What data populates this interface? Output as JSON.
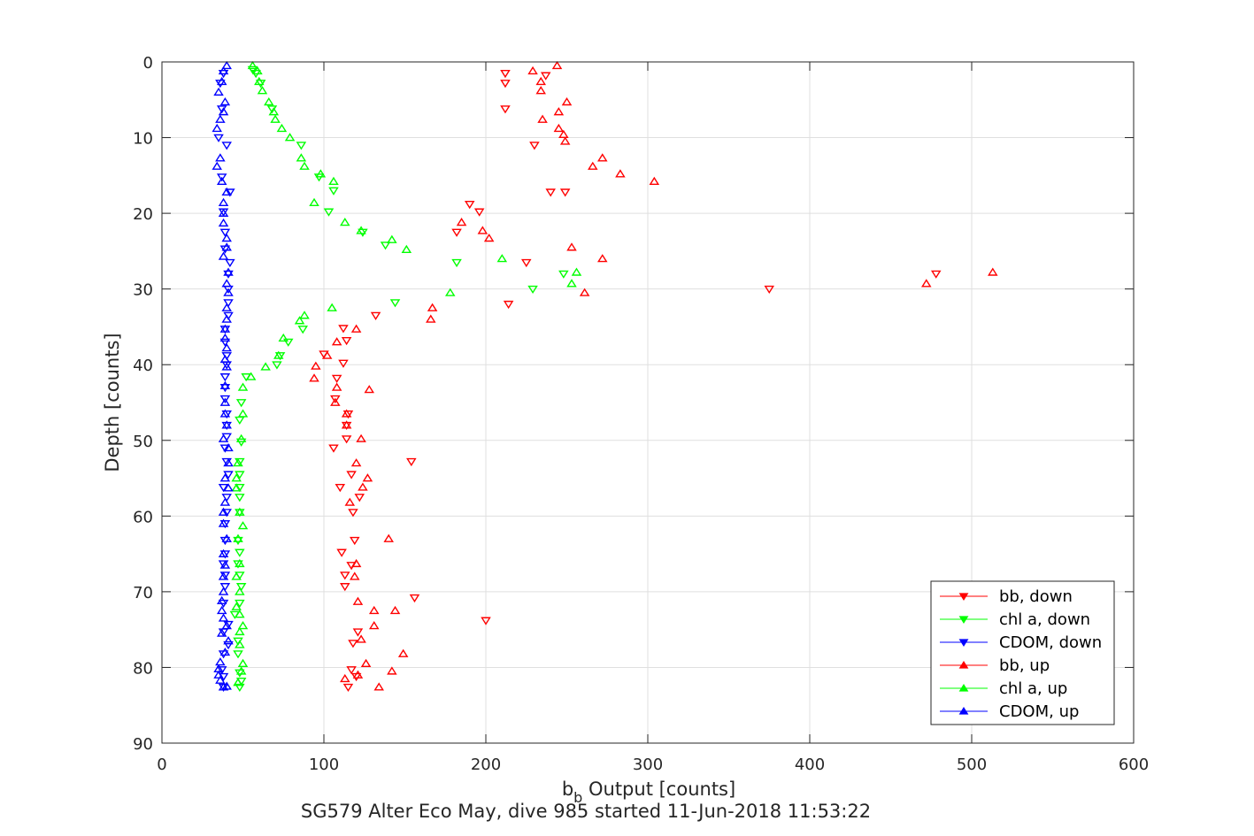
{
  "chart_data": {
    "type": "scatter",
    "title": "",
    "xlabel": {
      "main": "b",
      "subscript": "b",
      "rest": " Output [counts]"
    },
    "ylabel": "Depth [counts]",
    "caption": "SG579 Alter Eco May, dive 985 started 11-Jun-2018 11:53:22",
    "xlim": [
      0,
      600
    ],
    "ylim": [
      0,
      90
    ],
    "y_reversed": true,
    "grid": true,
    "x_ticks": [
      0,
      100,
      200,
      300,
      400,
      500,
      600
    ],
    "y_ticks": [
      0,
      10,
      20,
      30,
      40,
      50,
      60,
      70,
      80,
      90
    ],
    "legend_position": "bottom-right",
    "series": [
      {
        "name": "bb, down",
        "color": "#ff0000",
        "marker": "triangle-down",
        "points": [
          [
            212,
            1.5
          ],
          [
            212,
            2.8
          ],
          [
            212,
            6.2
          ],
          [
            230,
            11
          ],
          [
            237,
            1.8
          ],
          [
            240,
            17.2
          ],
          [
            249,
            17.2
          ],
          [
            196,
            19.8
          ],
          [
            190,
            18.8
          ],
          [
            182,
            22.5
          ],
          [
            225,
            26.5
          ],
          [
            214,
            32
          ],
          [
            375,
            30
          ],
          [
            478,
            28
          ],
          [
            132,
            33.5
          ],
          [
            112,
            35.2
          ],
          [
            114,
            36.8
          ],
          [
            100,
            38.6
          ],
          [
            112,
            39.8
          ],
          [
            108,
            41.8
          ],
          [
            107,
            44.5
          ],
          [
            115,
            46.5
          ],
          [
            114,
            48
          ],
          [
            114,
            49.8
          ],
          [
            106,
            51
          ],
          [
            154,
            52.8
          ],
          [
            117,
            54.5
          ],
          [
            110,
            56.2
          ],
          [
            122,
            57.5
          ],
          [
            118,
            59.5
          ],
          [
            119,
            63.2
          ],
          [
            111,
            64.8
          ],
          [
            117,
            66.5
          ],
          [
            113,
            67.8
          ],
          [
            113,
            69.3
          ],
          [
            156,
            70.8
          ],
          [
            200,
            73.8
          ],
          [
            121,
            75.3
          ],
          [
            118,
            76.8
          ],
          [
            117,
            80.3
          ],
          [
            120,
            81.2
          ],
          [
            115,
            82.6
          ]
        ]
      },
      {
        "name": "chl a, down",
        "color": "#00ff00",
        "marker": "triangle-down",
        "points": [
          [
            56,
            1
          ],
          [
            58,
            1.5
          ],
          [
            61,
            2.8
          ],
          [
            68,
            6.2
          ],
          [
            86,
            11
          ],
          [
            97,
            15.2
          ],
          [
            106,
            17
          ],
          [
            103,
            19.8
          ],
          [
            124,
            22.5
          ],
          [
            138,
            24.2
          ],
          [
            182,
            26.5
          ],
          [
            248,
            28
          ],
          [
            229,
            30
          ],
          [
            144,
            31.8
          ],
          [
            87,
            35.3
          ],
          [
            78,
            37
          ],
          [
            73,
            38.8
          ],
          [
            71,
            40
          ],
          [
            52,
            41.6
          ],
          [
            49,
            45
          ],
          [
            48,
            47.3
          ],
          [
            49,
            50.2
          ],
          [
            48,
            52.8
          ],
          [
            48,
            54.5
          ],
          [
            48,
            56.2
          ],
          [
            48,
            57.5
          ],
          [
            48,
            59.5
          ],
          [
            47,
            63.2
          ],
          [
            48,
            64.8
          ],
          [
            47,
            66.3
          ],
          [
            48,
            67.8
          ],
          [
            49,
            69.3
          ],
          [
            48,
            71.5
          ],
          [
            45,
            73
          ],
          [
            47,
            76.5
          ],
          [
            47,
            78.2
          ],
          [
            48,
            80.7
          ],
          [
            49,
            81.8
          ],
          [
            48,
            82.6
          ]
        ]
      },
      {
        "name": "CDOM, down",
        "color": "#0000ff",
        "marker": "triangle-down",
        "points": [
          [
            38,
            1.5
          ],
          [
            36,
            2.8
          ],
          [
            37,
            6.2
          ],
          [
            40,
            11
          ],
          [
            35,
            10
          ],
          [
            37,
            15.2
          ],
          [
            42,
            17.2
          ],
          [
            38,
            19.8
          ],
          [
            39,
            22.5
          ],
          [
            39,
            24.7
          ],
          [
            42,
            26.5
          ],
          [
            41,
            28
          ],
          [
            41,
            30
          ],
          [
            41,
            31.8
          ],
          [
            41,
            33.5
          ],
          [
            39,
            35.3
          ],
          [
            39,
            37
          ],
          [
            40,
            38.8
          ],
          [
            40,
            40
          ],
          [
            39,
            41.6
          ],
          [
            39,
            43
          ],
          [
            39,
            44.5
          ],
          [
            40,
            46.5
          ],
          [
            40,
            48
          ],
          [
            40,
            49.5
          ],
          [
            39,
            51
          ],
          [
            40,
            52.8
          ],
          [
            41,
            54.5
          ],
          [
            38,
            56.2
          ],
          [
            40,
            57.5
          ],
          [
            40,
            59.5
          ],
          [
            39,
            61
          ],
          [
            39,
            63.2
          ],
          [
            39,
            65
          ],
          [
            38,
            66.3
          ],
          [
            39,
            67.8
          ],
          [
            39,
            69.3
          ],
          [
            38,
            71.5
          ],
          [
            41,
            74.3
          ],
          [
            38,
            75.3
          ],
          [
            41,
            77
          ],
          [
            38,
            78.2
          ],
          [
            37,
            80.3
          ],
          [
            38,
            81.2
          ],
          [
            38,
            82.6
          ]
        ]
      },
      {
        "name": "bb, up",
        "color": "#ff0000",
        "marker": "triangle-up",
        "points": [
          [
            244,
            0.5
          ],
          [
            229,
            1.2
          ],
          [
            234,
            2.6
          ],
          [
            234,
            3.8
          ],
          [
            250,
            5.3
          ],
          [
            245,
            6.6
          ],
          [
            235,
            7.6
          ],
          [
            245,
            8.8
          ],
          [
            248,
            9.6
          ],
          [
            249,
            10.5
          ],
          [
            272,
            12.7
          ],
          [
            266,
            13.8
          ],
          [
            283,
            14.8
          ],
          [
            304,
            15.8
          ],
          [
            185,
            21.2
          ],
          [
            198,
            22.3
          ],
          [
            202,
            23.3
          ],
          [
            253,
            24.5
          ],
          [
            272,
            26
          ],
          [
            513,
            27.8
          ],
          [
            472,
            29.3
          ],
          [
            261,
            30.5
          ],
          [
            167,
            32.5
          ],
          [
            166,
            34
          ],
          [
            120,
            35.3
          ],
          [
            108,
            37
          ],
          [
            102,
            38.8
          ],
          [
            95,
            40.2
          ],
          [
            94,
            41.8
          ],
          [
            108,
            43
          ],
          [
            128,
            43.3
          ],
          [
            107,
            45
          ],
          [
            114,
            46.5
          ],
          [
            114,
            48
          ],
          [
            123,
            49.8
          ],
          [
            120,
            53
          ],
          [
            127,
            55
          ],
          [
            124,
            56.2
          ],
          [
            116,
            58.2
          ],
          [
            140,
            63
          ],
          [
            120,
            66.3
          ],
          [
            119,
            68
          ],
          [
            121,
            71.3
          ],
          [
            131,
            72.5
          ],
          [
            144,
            72.5
          ],
          [
            131,
            74.5
          ],
          [
            123,
            76.3
          ],
          [
            149,
            78.2
          ],
          [
            126,
            79.5
          ],
          [
            142,
            80.5
          ],
          [
            121,
            81
          ],
          [
            113,
            81.5
          ],
          [
            134,
            82.6
          ]
        ]
      },
      {
        "name": "chl a, up",
        "color": "#00ff00",
        "marker": "triangle-up",
        "points": [
          [
            56,
            0.5
          ],
          [
            59,
            1.2
          ],
          [
            60,
            2.6
          ],
          [
            62,
            3.8
          ],
          [
            66,
            5.3
          ],
          [
            69,
            6.6
          ],
          [
            70,
            7.6
          ],
          [
            74,
            8.8
          ],
          [
            79,
            10
          ],
          [
            86,
            12.7
          ],
          [
            88,
            13.8
          ],
          [
            98,
            14.8
          ],
          [
            106,
            15.8
          ],
          [
            94,
            18.6
          ],
          [
            113,
            21.2
          ],
          [
            123,
            22.3
          ],
          [
            142,
            23.5
          ],
          [
            151,
            24.8
          ],
          [
            210,
            26
          ],
          [
            256,
            27.8
          ],
          [
            253,
            29.3
          ],
          [
            178,
            30.5
          ],
          [
            105,
            32.5
          ],
          [
            88,
            33.5
          ],
          [
            85,
            34.2
          ],
          [
            75,
            36.5
          ],
          [
            72,
            38.8
          ],
          [
            64,
            40.3
          ],
          [
            55,
            41.6
          ],
          [
            50,
            43
          ],
          [
            50,
            46.5
          ],
          [
            49,
            49.8
          ],
          [
            47,
            53
          ],
          [
            46,
            55
          ],
          [
            46,
            56.3
          ],
          [
            48,
            59.5
          ],
          [
            50,
            61.3
          ],
          [
            47,
            63
          ],
          [
            48,
            66.3
          ],
          [
            46,
            68
          ],
          [
            48,
            70
          ],
          [
            46,
            72
          ],
          [
            48,
            73
          ],
          [
            50,
            74.5
          ],
          [
            48,
            75.3
          ],
          [
            48,
            77
          ],
          [
            50,
            79.5
          ],
          [
            49,
            80.5
          ],
          [
            47,
            82
          ]
        ]
      },
      {
        "name": "CDOM, up",
        "color": "#0000ff",
        "marker": "triangle-up",
        "points": [
          [
            40,
            0.5
          ],
          [
            38,
            1.2
          ],
          [
            37,
            2.6
          ],
          [
            35,
            4
          ],
          [
            39,
            5.3
          ],
          [
            38,
            6.6
          ],
          [
            36,
            7.6
          ],
          [
            34,
            8.8
          ],
          [
            36,
            12.7
          ],
          [
            34,
            13.8
          ],
          [
            37,
            15.8
          ],
          [
            40,
            17.2
          ],
          [
            38,
            18.6
          ],
          [
            38,
            20
          ],
          [
            38,
            21.3
          ],
          [
            40,
            23.3
          ],
          [
            40,
            24.5
          ],
          [
            38,
            25.7
          ],
          [
            41,
            27.8
          ],
          [
            40,
            29.3
          ],
          [
            41,
            30.5
          ],
          [
            40,
            32.5
          ],
          [
            40,
            34
          ],
          [
            39,
            35.3
          ],
          [
            39,
            36.5
          ],
          [
            40,
            37.8
          ],
          [
            39,
            39.3
          ],
          [
            40,
            40.3
          ],
          [
            39,
            42.8
          ],
          [
            39,
            45
          ],
          [
            39,
            46.5
          ],
          [
            40,
            48
          ],
          [
            38,
            49.8
          ],
          [
            41,
            51
          ],
          [
            41,
            53
          ],
          [
            39,
            55
          ],
          [
            41,
            56.3
          ],
          [
            39,
            58.2
          ],
          [
            38,
            59.5
          ],
          [
            38,
            61
          ],
          [
            40,
            63
          ],
          [
            38,
            65
          ],
          [
            39,
            66.5
          ],
          [
            38,
            68
          ],
          [
            38,
            70
          ],
          [
            37,
            71.2
          ],
          [
            37,
            72.5
          ],
          [
            38,
            73.5
          ],
          [
            40,
            74.5
          ],
          [
            37,
            75.5
          ],
          [
            41,
            76.5
          ],
          [
            39,
            78
          ],
          [
            36,
            79.3
          ],
          [
            35,
            80.2
          ],
          [
            35,
            81
          ],
          [
            36,
            81.7
          ],
          [
            40,
            82.5
          ],
          [
            38,
            82.6
          ]
        ]
      }
    ]
  }
}
